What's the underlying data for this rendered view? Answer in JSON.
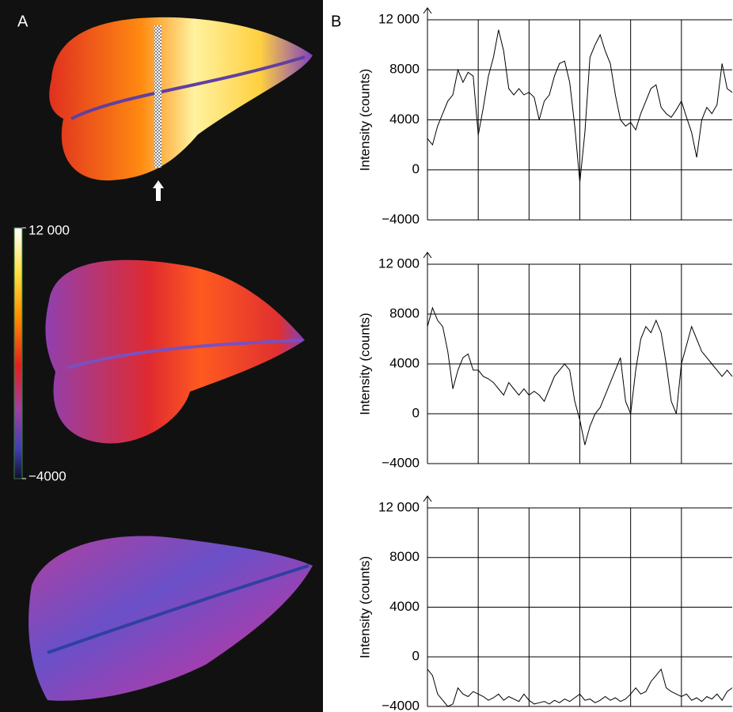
{
  "panel_labels": [
    "A",
    "B"
  ],
  "colorbar": {
    "lim": [
      -4000,
      12000
    ],
    "ticks": [
      {
        "value": 12000,
        "label": "12 000"
      },
      {
        "value": -4000,
        "label": "−4000"
      }
    ]
  },
  "chart_data": [
    {
      "type": "line",
      "ylabel": "Intensity (counts)",
      "color": "#000000",
      "grid": true,
      "x": [
        0,
        1,
        2,
        3,
        4,
        5,
        6,
        7,
        8,
        9,
        10,
        11,
        12,
        13,
        14,
        15,
        16,
        17,
        18,
        19,
        20,
        21,
        22,
        23,
        24,
        25,
        26,
        27,
        28,
        29,
        30,
        31,
        32,
        33,
        34,
        35,
        36,
        37,
        38,
        39,
        40,
        41,
        42,
        43,
        44,
        45,
        46,
        47,
        48,
        49,
        50,
        51,
        52,
        53,
        54,
        55,
        56,
        57,
        58,
        59,
        60
      ],
      "values": [
        2500,
        2000,
        3500,
        4500,
        5500,
        6000,
        8000,
        7000,
        7800,
        7500,
        2800,
        5000,
        7500,
        9000,
        11200,
        9500,
        6500,
        6000,
        6500,
        6000,
        6200,
        5800,
        4000,
        5500,
        6000,
        7500,
        8500,
        8700,
        7000,
        3500,
        -1000,
        3000,
        9000,
        10000,
        10800,
        9500,
        8500,
        6000,
        4000,
        3500,
        3800,
        3200,
        4500,
        5500,
        6500,
        6800,
        5000,
        4500,
        4200,
        4800,
        5500,
        4200,
        3000,
        1000,
        4000,
        5000,
        4500,
        5200,
        8500,
        6500,
        6200
      ],
      "xlim": [
        0,
        60
      ],
      "xticks": [
        10,
        20,
        30,
        40,
        50
      ],
      "ylim": [
        -4000,
        12000
      ],
      "yticks": [
        {
          "value": 12000,
          "label": "12 000"
        },
        8000,
        4000,
        0,
        {
          "value": -4000,
          "label": "−4000"
        }
      ]
    },
    {
      "type": "line",
      "ylabel": "Intensity (counts)",
      "color": "#000000",
      "grid": true,
      "x": [
        0,
        1,
        2,
        3,
        4,
        5,
        6,
        7,
        8,
        9,
        10,
        11,
        12,
        13,
        14,
        15,
        16,
        17,
        18,
        19,
        20,
        21,
        22,
        23,
        24,
        25,
        26,
        27,
        28,
        29,
        30,
        31,
        32,
        33,
        34,
        35,
        36,
        37,
        38,
        39,
        40,
        41,
        42,
        43,
        44,
        45,
        46,
        47,
        48,
        49,
        50,
        51,
        52,
        53,
        54,
        55,
        56,
        57,
        58,
        59,
        60
      ],
      "values": [
        7000,
        8500,
        7500,
        7000,
        5000,
        2000,
        3500,
        4500,
        4800,
        3500,
        3500,
        3000,
        2800,
        2500,
        2000,
        1500,
        2500,
        2000,
        1500,
        2000,
        1500,
        1800,
        1500,
        1000,
        2000,
        3000,
        3500,
        4000,
        3500,
        1000,
        -500,
        -2500,
        -1000,
        0,
        500,
        1500,
        2500,
        3500,
        4500,
        1000,
        0,
        3500,
        6000,
        7000,
        6500,
        7500,
        6500,
        4000,
        1000,
        0,
        4000,
        5500,
        7000,
        6000,
        5000,
        4500,
        4000,
        3500,
        3000,
        3500,
        3000
      ],
      "xlim": [
        0,
        60
      ],
      "xticks": [
        10,
        20,
        30,
        40,
        50
      ],
      "ylim": [
        -4000,
        12000
      ],
      "yticks": [
        {
          "value": 12000,
          "label": "12 000"
        },
        8000,
        4000,
        0,
        {
          "value": -4000,
          "label": "−4000"
        }
      ]
    },
    {
      "type": "line",
      "ylabel": "Intensity (counts)",
      "color": "#000000",
      "grid": true,
      "x": [
        0,
        1,
        2,
        3,
        4,
        5,
        6,
        7,
        8,
        9,
        10,
        11,
        12,
        13,
        14,
        15,
        16,
        17,
        18,
        19,
        20,
        21,
        22,
        23,
        24,
        25,
        26,
        27,
        28,
        29,
        30,
        31,
        32,
        33,
        34,
        35,
        36,
        37,
        38,
        39,
        40,
        41,
        42,
        43,
        44,
        45,
        46,
        47,
        48,
        49,
        50,
        51,
        52,
        53,
        54,
        55,
        56,
        57,
        58,
        59,
        60
      ],
      "values": [
        -1000,
        -1500,
        -3000,
        -3500,
        -4000,
        -3800,
        -2500,
        -3000,
        -3200,
        -2800,
        -3000,
        -3200,
        -3500,
        -3300,
        -3000,
        -3500,
        -3200,
        -3400,
        -3600,
        -3000,
        -3500,
        -3800,
        -3700,
        -3600,
        -3800,
        -3500,
        -3700,
        -3400,
        -3600,
        -3300,
        -3000,
        -3500,
        -3400,
        -3700,
        -3500,
        -3200,
        -3500,
        -3300,
        -3600,
        -3400,
        -3000,
        -2500,
        -3000,
        -2800,
        -2000,
        -1500,
        -1000,
        -2500,
        -2800,
        -3000,
        -3200,
        -3000,
        -3500,
        -3300,
        -3600,
        -3200,
        -3400,
        -3000,
        -3500,
        -2800,
        -2500
      ],
      "xlim": [
        0,
        60
      ],
      "xticks": [
        10,
        20,
        30,
        40,
        50
      ],
      "ylim": [
        -4000,
        12000
      ],
      "yticks": [
        {
          "value": 12000,
          "label": "12 000"
        },
        8000,
        4000,
        0,
        {
          "value": -4000,
          "label": "−4000"
        }
      ]
    }
  ]
}
